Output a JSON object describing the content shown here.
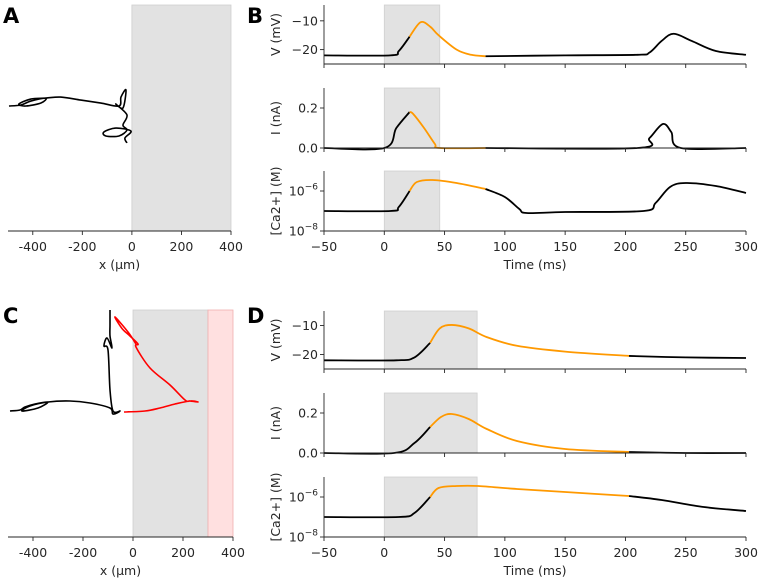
{
  "colors": {
    "trace": "#000000",
    "highlight": "#ff9900",
    "stim": "#e2e2e2",
    "red_traj": "#ff0000",
    "pink": "#ffe0e0"
  },
  "chart_data": [
    {
      "panel": "A",
      "type": "line",
      "xlabel": "x (µm)",
      "xlim": [
        -500,
        400
      ],
      "xticks": [
        -400,
        -200,
        0,
        200,
        400
      ],
      "xticklabels": [
        "-400",
        "-200",
        "0",
        "200",
        "400"
      ],
      "shaded": [
        {
          "x": [
            0,
            400
          ],
          "color": "gray"
        }
      ],
      "series": [
        {
          "name": "trajectory",
          "color": "black",
          "points": [
            [
              -496,
              0
            ],
            [
              -448,
              4
            ],
            [
              -408,
              20
            ],
            [
              -347,
              32
            ],
            [
              -367,
              12
            ],
            [
              -428,
              0
            ],
            [
              -456,
              8
            ],
            [
              -408,
              28
            ],
            [
              -347,
              32
            ],
            [
              -287,
              36
            ],
            [
              -206,
              24
            ],
            [
              -125,
              12
            ],
            [
              -52,
              0
            ],
            [
              -44,
              36
            ],
            [
              -24,
              65
            ],
            [
              -36,
              -8
            ],
            [
              -65,
              8
            ],
            [
              -20,
              -36
            ],
            [
              -36,
              -77
            ],
            [
              -20,
              -97
            ],
            [
              -52,
              -121
            ],
            [
              -105,
              -121
            ],
            [
              -113,
              -105
            ],
            [
              -65,
              -89
            ],
            [
              -4,
              -101
            ],
            [
              -28,
              -129
            ],
            [
              -20,
              -149
            ]
          ]
        }
      ]
    },
    {
      "panel": "B",
      "type": "line",
      "xlabel": "Time (ms)",
      "xlim": [
        -50,
        300
      ],
      "xticks": [
        -50,
        0,
        50,
        100,
        150,
        200,
        250,
        300
      ],
      "xticklabels": [
        "−50",
        "0",
        "50",
        "100",
        "150",
        "200",
        "250",
        "300"
      ],
      "stim": [
        0,
        46
      ],
      "highlight": [
        21,
        84
      ],
      "subplots": [
        {
          "ylabel": "V (mV)",
          "ylim": [
            -25,
            -4.5
          ],
          "log": false,
          "yticks": [
            -10,
            -20
          ],
          "yticklabels": [
            "−10",
            "−20"
          ],
          "x": [
            -50,
            5,
            12,
            21,
            30,
            38,
            45,
            60,
            72,
            84,
            150,
            210,
            220,
            230,
            240,
            255,
            275,
            300
          ],
          "y": [
            -22,
            -22,
            -20.5,
            -15.5,
            -10.5,
            -12,
            -15,
            -20,
            -21.8,
            -22.3,
            -22,
            -21.8,
            -21,
            -17,
            -14.5,
            -17,
            -20.5,
            -21.8
          ]
        },
        {
          "ylabel": "I (nA)",
          "ylim": [
            0,
            0.3
          ],
          "log": false,
          "yticks": [
            0.2,
            0.0
          ],
          "yticklabels": [
            "0.2",
            "0.0"
          ],
          "x": [
            -50,
            0,
            10,
            21,
            24,
            33,
            42,
            46,
            84,
            210,
            220,
            231,
            238,
            246,
            300
          ],
          "y": [
            0,
            0,
            0.1,
            0.18,
            0.17,
            0.1,
            0.02,
            0,
            0,
            0,
            0.05,
            0.12,
            0.08,
            0,
            0
          ]
        },
        {
          "ylabel": "[Ca2+] (M)",
          "ylim": [
            -8,
            -5
          ],
          "log": true,
          "yticks": [
            -6,
            -8
          ],
          "yticklabels": [
            {
              "base": "10",
              "exp": "−6"
            },
            {
              "base": "10",
              "exp": "−8"
            }
          ],
          "x": [
            -50,
            5,
            12,
            21,
            27,
            40,
            60,
            84,
            100,
            112,
            118,
            150,
            215,
            225,
            237,
            250,
            275,
            300
          ],
          "y": [
            -7,
            -7,
            -6.8,
            -6,
            -5.55,
            -5.45,
            -5.6,
            -5.9,
            -6.3,
            -6.9,
            -7.1,
            -7.05,
            -7,
            -6.6,
            -5.8,
            -5.6,
            -5.75,
            -6.1
          ]
        }
      ]
    },
    {
      "panel": "C",
      "type": "line",
      "xlabel": "x (µm)",
      "xlim": [
        -500,
        400
      ],
      "xticks": [
        -400,
        -200,
        0,
        200,
        400
      ],
      "xticklabels": [
        "-400",
        "-200",
        "0",
        "200",
        "400"
      ],
      "shaded": [
        {
          "x": [
            0,
            300
          ],
          "color": "gray"
        },
        {
          "x": [
            300,
            400
          ],
          "color": "pink"
        }
      ],
      "series": [
        {
          "name": "trajectory-before",
          "color": "black",
          "points": [
            [
              -492,
              0
            ],
            [
              -452,
              4
            ],
            [
              -432,
              16
            ],
            [
              -392,
              28
            ],
            [
              -340,
              36
            ],
            [
              -380,
              12
            ],
            [
              -444,
              0
            ],
            [
              -412,
              20
            ],
            [
              -340,
              36
            ],
            [
              -252,
              40
            ],
            [
              -172,
              32
            ],
            [
              -92,
              12
            ],
            [
              -80,
              -12
            ],
            [
              -52,
              0
            ],
            [
              -80,
              0
            ],
            [
              -92,
              84
            ],
            [
              -100,
              244
            ],
            [
              -116,
              260
            ],
            [
              -104,
              292
            ],
            [
              -84,
              252
            ],
            [
              -92,
              300
            ],
            [
              -92,
              344
            ],
            [
              -92,
              404
            ]
          ]
        },
        {
          "name": "trajectory-after",
          "color": "red",
          "points": [
            [
              -36,
              -4
            ],
            [
              48,
              0
            ],
            [
              108,
              12
            ],
            [
              168,
              28
            ],
            [
              228,
              40
            ],
            [
              260,
              36
            ],
            [
              228,
              40
            ],
            [
              208,
              44
            ],
            [
              148,
              104
            ],
            [
              68,
              172
            ],
            [
              12,
              256
            ],
            [
              20,
              268
            ],
            [
              -12,
              300
            ],
            [
              -44,
              330
            ],
            [
              -72,
              376
            ],
            [
              -20,
              316
            ],
            [
              12,
              268
            ]
          ]
        }
      ]
    },
    {
      "panel": "D",
      "type": "line",
      "xlabel": "Time (ms)",
      "xlim": [
        -50,
        300
      ],
      "xticks": [
        -50,
        0,
        50,
        100,
        150,
        200,
        250,
        300
      ],
      "xticklabels": [
        "−50",
        "0",
        "50",
        "100",
        "150",
        "200",
        "250",
        "300"
      ],
      "stim": [
        0,
        77
      ],
      "highlight": [
        38,
        203
      ],
      "subplots": [
        {
          "ylabel": "V (mV)",
          "ylim": [
            -25,
            -5
          ],
          "log": false,
          "yticks": [
            -10,
            -20
          ],
          "yticklabels": [
            "−10",
            "−20"
          ],
          "x": [
            -50,
            10,
            25,
            38,
            46,
            56,
            70,
            85,
            110,
            150,
            203,
            250,
            300
          ],
          "y": [
            -22,
            -22,
            -21,
            -16,
            -11,
            -9.8,
            -11,
            -14,
            -17,
            -19,
            -20.5,
            -21,
            -21.2
          ]
        },
        {
          "ylabel": "I (nA)",
          "ylim": [
            0,
            0.3
          ],
          "log": false,
          "yticks": [
            0.2,
            0.0
          ],
          "yticklabels": [
            "0.2",
            "0.0"
          ],
          "x": [
            -50,
            8,
            25,
            38,
            47,
            56,
            70,
            85,
            110,
            150,
            203,
            250,
            300
          ],
          "y": [
            0,
            0,
            0.05,
            0.13,
            0.18,
            0.195,
            0.17,
            0.12,
            0.06,
            0.02,
            0.005,
            0,
            0
          ]
        },
        {
          "ylabel": "[Ca2+] (M)",
          "ylim": [
            -8,
            -5
          ],
          "log": true,
          "yticks": [
            -6,
            -8
          ],
          "yticklabels": [
            {
              "base": "10",
              "exp": "−6"
            },
            {
              "base": "10",
              "exp": "−8"
            }
          ],
          "x": [
            -50,
            12,
            25,
            38,
            45,
            60,
            78,
            110,
            150,
            203,
            230,
            265,
            300
          ],
          "y": [
            -7,
            -7,
            -6.8,
            -6,
            -5.55,
            -5.45,
            -5.45,
            -5.6,
            -5.75,
            -5.95,
            -6.15,
            -6.5,
            -6.7
          ]
        }
      ]
    }
  ]
}
